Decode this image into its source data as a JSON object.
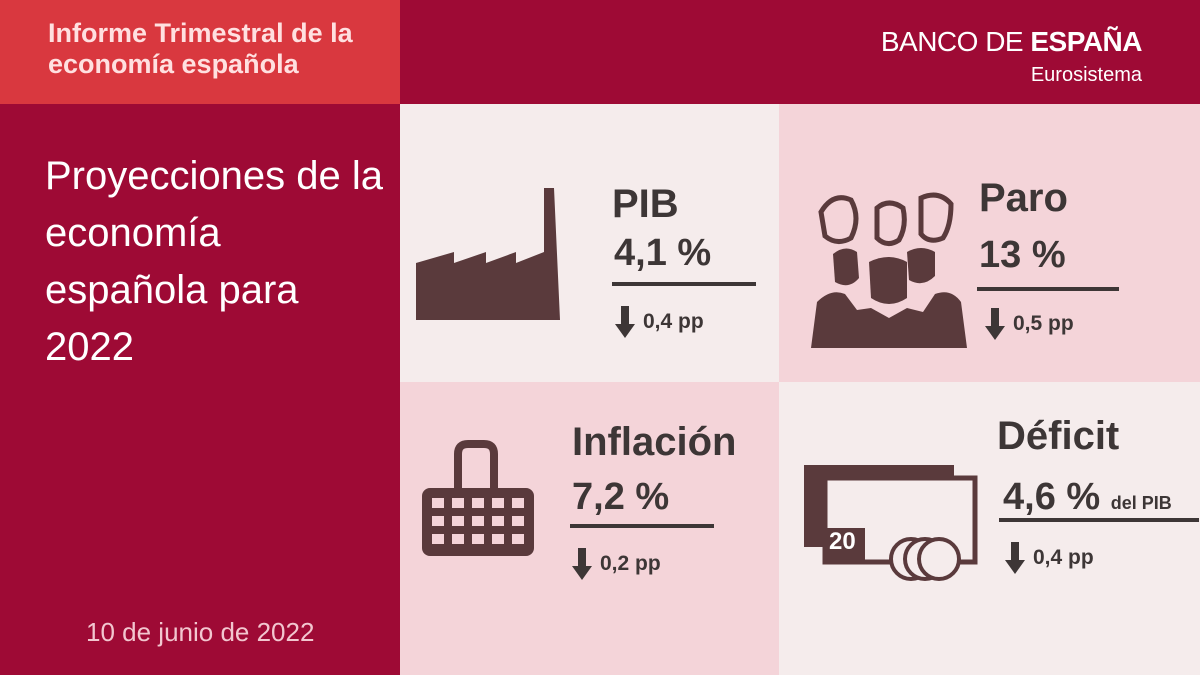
{
  "header": {
    "series_title": "Informe Trimestral de la economía española",
    "brand_light": "BANCO DE ",
    "brand_bold": "ESPAÑA",
    "brand_sub": "Eurosistema"
  },
  "main_title": "Proyecciones de la economía española para 2022",
  "date": "10 de junio de 2022",
  "indicators": {
    "pib": {
      "label": "PIB",
      "value": "4,1 %",
      "change": "0,4 pp",
      "icon": "factory-icon",
      "direction": "down"
    },
    "paro": {
      "label": "Paro",
      "value": "13 %",
      "change": "0,5 pp",
      "icon": "people-group-icon",
      "direction": "down"
    },
    "inflacion": {
      "label": "Inflación",
      "value": "7,2 %",
      "change": "0,2 pp",
      "icon": "shopping-basket-icon",
      "direction": "down"
    },
    "deficit": {
      "label": "Déficit",
      "value": "4,6 %",
      "unit": "del PIB",
      "change": "0,4 pp",
      "icon": "money-icon",
      "note_number": "20",
      "direction": "down"
    }
  },
  "colors": {
    "crimson": "#9e0a35",
    "red": "#d9383f",
    "dark": "#3d3636",
    "icon": "#5a3a3c",
    "panel_light": "#f5ecec",
    "panel_pink": "#f4d4d9"
  }
}
